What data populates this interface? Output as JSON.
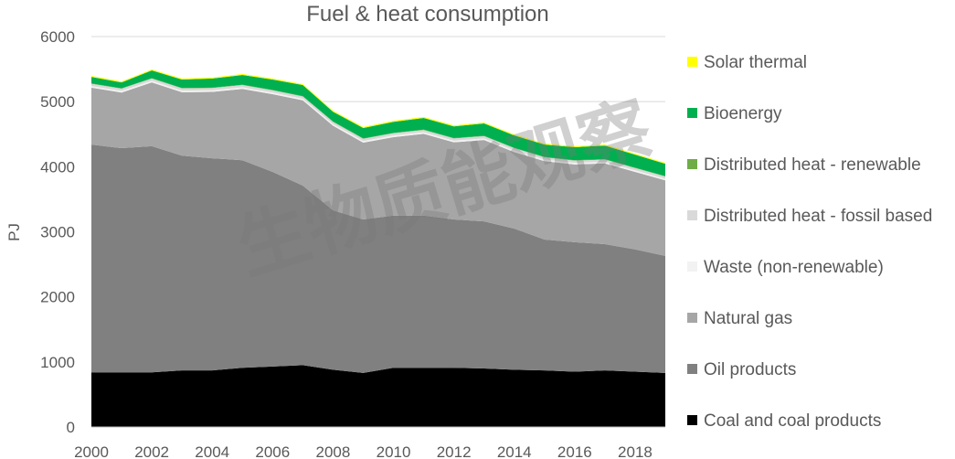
{
  "chart_data": {
    "type": "area",
    "stacked": true,
    "title": "Fuel & heat consumption",
    "xlabel": "",
    "ylabel": "PJ",
    "ylim": [
      0,
      6000
    ],
    "yticks": [
      0,
      1000,
      2000,
      3000,
      4000,
      5000,
      6000
    ],
    "xlim": [
      2000,
      2019
    ],
    "xticks": [
      2000,
      2002,
      2004,
      2006,
      2008,
      2010,
      2012,
      2014,
      2016,
      2018
    ],
    "grid": true,
    "legend_position": "right",
    "x": [
      2000,
      2001,
      2002,
      2003,
      2004,
      2005,
      2006,
      2007,
      2008,
      2009,
      2010,
      2011,
      2012,
      2013,
      2014,
      2015,
      2016,
      2017,
      2018,
      2019
    ],
    "series": [
      {
        "name": "Coal and coal products",
        "color": "#000000",
        "values": [
          840,
          840,
          840,
          870,
          870,
          910,
          930,
          950,
          880,
          830,
          910,
          910,
          910,
          900,
          880,
          870,
          850,
          870,
          850,
          830
        ]
      },
      {
        "name": "Oil products",
        "color": "#808080",
        "values": [
          3500,
          3445,
          3475,
          3300,
          3260,
          3190,
          2990,
          2760,
          2450,
          2360,
          2340,
          2340,
          2280,
          2260,
          2170,
          2010,
          1990,
          1940,
          1880,
          1800
        ]
      },
      {
        "name": "Natural gas",
        "color": "#a6a6a6",
        "values": [
          875,
          855,
          980,
          975,
          1020,
          1095,
          1195,
          1310,
          1300,
          1180,
          1205,
          1255,
          1185,
          1250,
          1175,
          1205,
          1195,
          1240,
          1190,
          1160
        ]
      },
      {
        "name": "Waste (non-renewable)",
        "color": "#f2f2f2",
        "values": [
          25,
          25,
          25,
          25,
          25,
          25,
          25,
          25,
          25,
          25,
          25,
          25,
          25,
          25,
          25,
          25,
          25,
          25,
          25,
          25
        ]
      },
      {
        "name": "Distributed heat - fossil based",
        "color": "#d9d9d9",
        "values": [
          35,
          35,
          35,
          35,
          35,
          35,
          35,
          35,
          35,
          35,
          35,
          35,
          35,
          35,
          35,
          35,
          35,
          35,
          35,
          35
        ]
      },
      {
        "name": "Distributed heat - renewable",
        "color": "#70ad47",
        "values": [
          5,
          5,
          5,
          5,
          5,
          5,
          5,
          5,
          5,
          5,
          5,
          5,
          5,
          5,
          5,
          5,
          5,
          5,
          5,
          5
        ]
      },
      {
        "name": "Bioenergy",
        "color": "#00b050",
        "values": [
          100,
          90,
          120,
          130,
          140,
          150,
          160,
          170,
          150,
          160,
          170,
          180,
          180,
          190,
          190,
          190,
          200,
          210,
          200,
          190
        ]
      },
      {
        "name": "Solar thermal",
        "color": "#ffff00",
        "values": [
          15,
          15,
          15,
          15,
          15,
          15,
          15,
          15,
          15,
          15,
          15,
          15,
          15,
          15,
          15,
          15,
          15,
          15,
          15,
          15
        ]
      }
    ],
    "legend_order": [
      "Solar thermal",
      "Bioenergy",
      "Distributed heat - renewable",
      "Distributed heat - fossil based",
      "Waste (non-renewable)",
      "Natural gas",
      "Oil products",
      "Coal and coal products"
    ]
  },
  "watermark": "生物质能观察"
}
